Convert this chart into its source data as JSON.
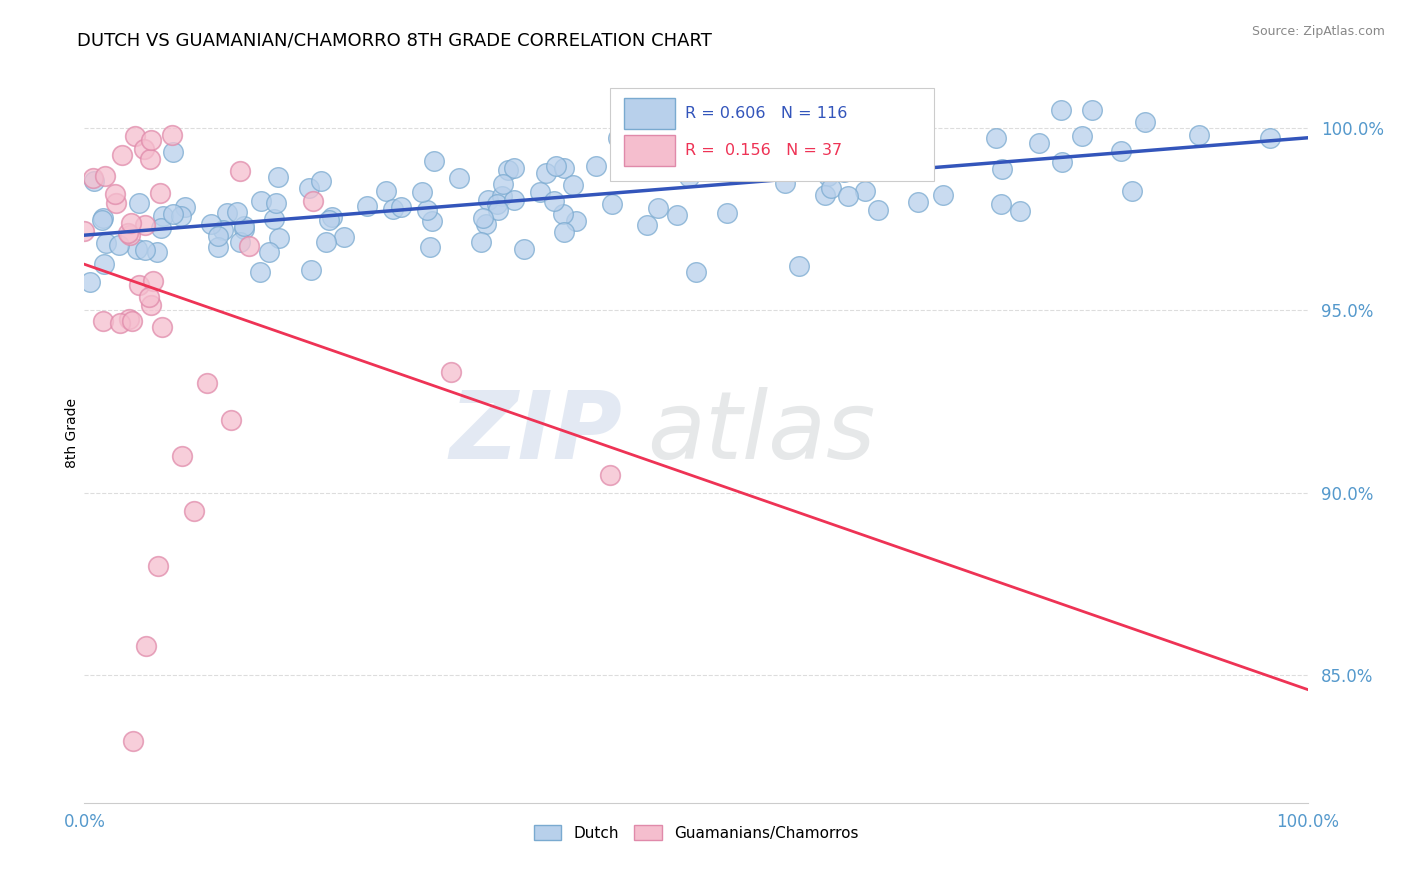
{
  "title": "DUTCH VS GUAMANIAN/CHAMORRO 8TH GRADE CORRELATION CHART",
  "source_text": "Source: ZipAtlas.com",
  "ylabel": "8th Grade",
  "y_tick_labels": [
    "85.0%",
    "90.0%",
    "95.0%",
    "100.0%"
  ],
  "y_tick_values": [
    0.85,
    0.9,
    0.95,
    1.0
  ],
  "x_range": [
    0.0,
    1.0
  ],
  "y_range": [
    0.815,
    1.018
  ],
  "dutch_color": "#b8d0eb",
  "dutch_edge_color": "#7aaad0",
  "chamorro_color": "#f5bece",
  "chamorro_edge_color": "#e08aaa",
  "dutch_line_color": "#3355bb",
  "chamorro_line_color": "#ee3355",
  "legend_dutch_label": "Dutch",
  "legend_chamorro_label": "Guamanians/Chamorros",
  "R_dutch": 0.606,
  "N_dutch": 116,
  "R_chamorro": 0.156,
  "N_chamorro": 37,
  "watermark_zip": "ZIP",
  "watermark_atlas": "atlas",
  "grid_color": "#dddddd",
  "tick_color": "#5599cc"
}
